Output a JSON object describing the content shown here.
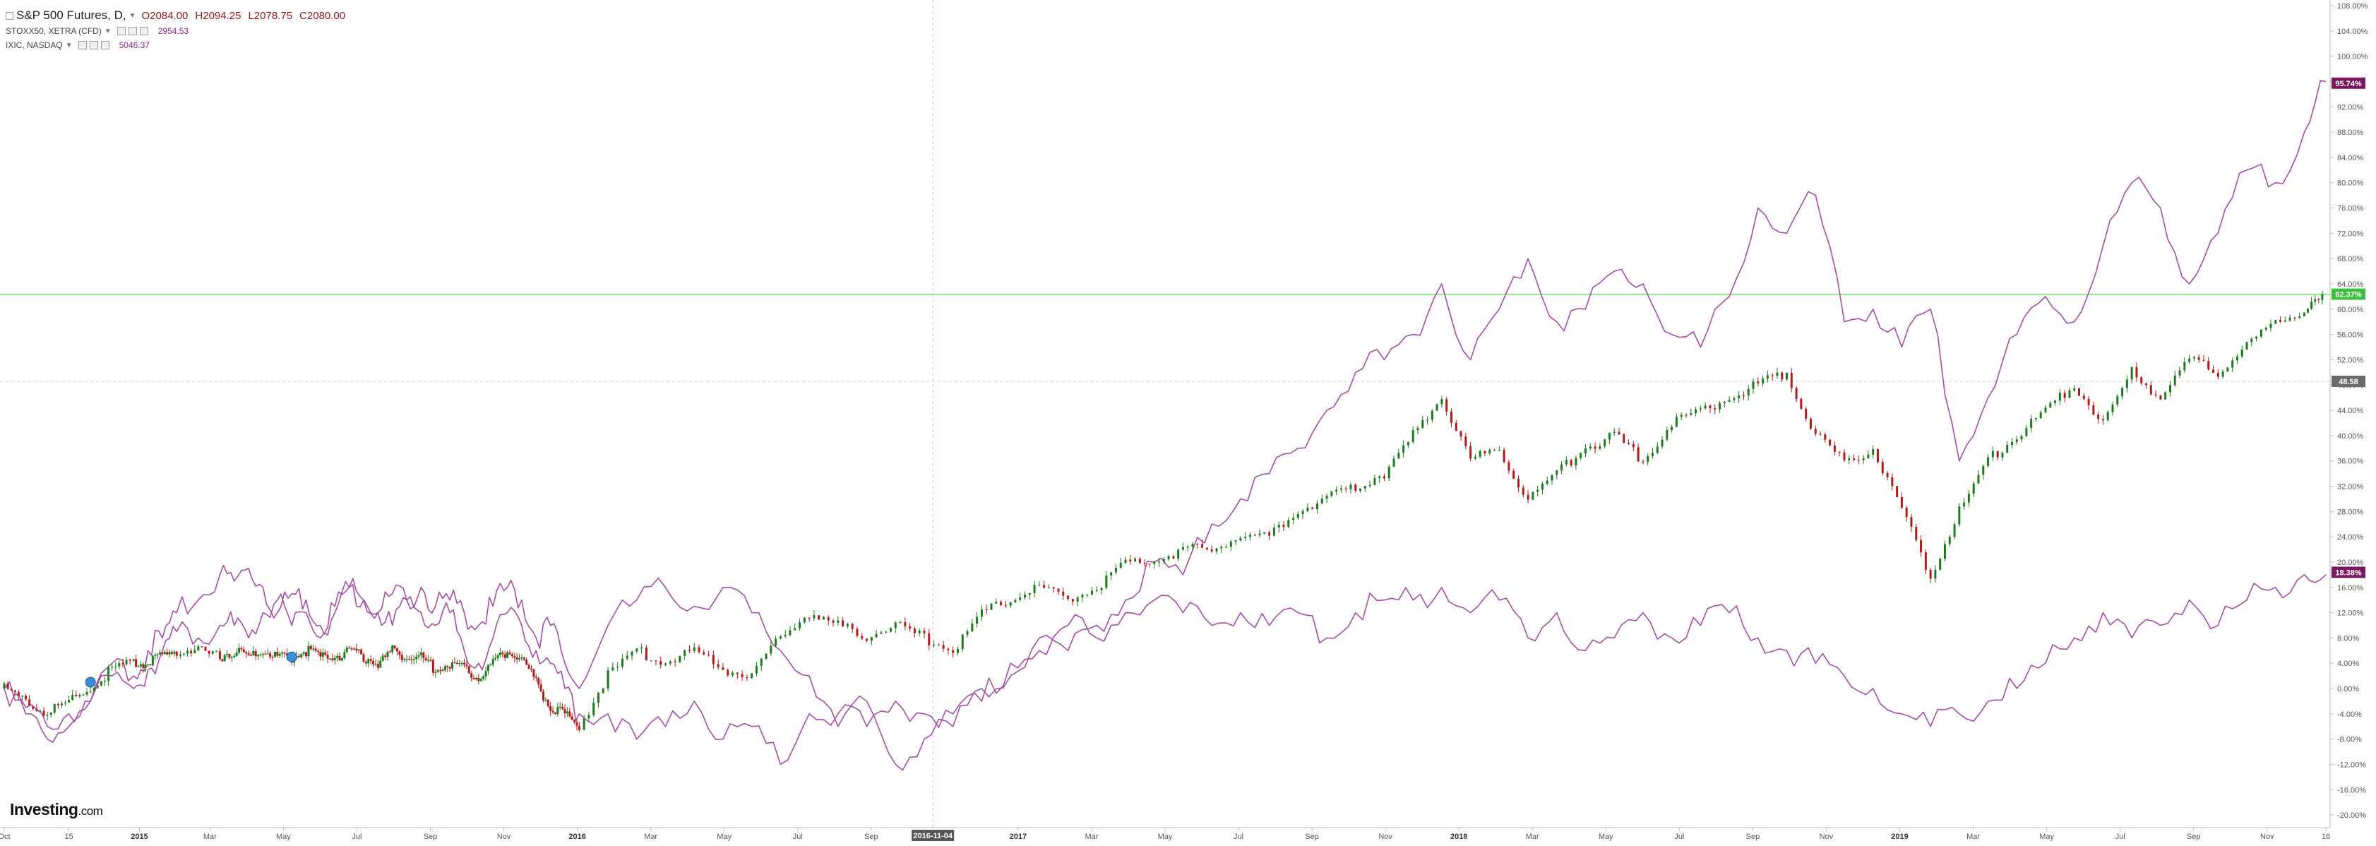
{
  "header": {
    "symbol": "S&P 500 Futures, D,",
    "ohlc": {
      "o": "O2084.00",
      "h": "H2094.25",
      "l": "L2078.75",
      "c": "C2080.00"
    },
    "compare": [
      {
        "name": "STOXX50, XETRA (CFD)",
        "value": "2954.53"
      },
      {
        "name": "IXIC, NASDAQ",
        "value": "5046.37"
      }
    ]
  },
  "logo": {
    "text": "Investing",
    "suffix": ".com"
  },
  "colors": {
    "compare_series": "#a050a0",
    "candle_up": "#1e7a1e",
    "candle_down": "#b01c1c",
    "current_line": "#66e066",
    "badge_purple": "#7a1a5e",
    "badge_green": "#3dbf3d",
    "badge_gray": "#6b6b6b"
  },
  "chart_data": {
    "type": "line",
    "yaxis_unit": "%",
    "ylim": [
      -22,
      108
    ],
    "y_ticks": [
      "108.00%",
      "104.00%",
      "100.00%",
      "96.00%",
      "92.00%",
      "88.00%",
      "84.00%",
      "80.00%",
      "76.00%",
      "72.00%",
      "68.00%",
      "64.00%",
      "60.00%",
      "56.00%",
      "52.00%",
      "48.00%",
      "44.00%",
      "40.00%",
      "36.00%",
      "32.00%",
      "28.00%",
      "24.00%",
      "20.00%",
      "16.00%",
      "12.00%",
      "8.00%",
      "4.00%",
      "0.00%",
      "-4.00%",
      "-8.00%",
      "-12.00%",
      "-16.00%",
      "-20.00%"
    ],
    "x_ticks": [
      "Oct",
      "15",
      "2015",
      "Mar",
      "May",
      "Jul",
      "Sep",
      "Nov",
      "2016",
      "Mar",
      "May",
      "Jul",
      "Sep",
      "2016-11-04",
      "2017",
      "Mar",
      "May",
      "Jul",
      "Sep",
      "Nov",
      "2018",
      "Mar",
      "May",
      "Jul",
      "Sep",
      "Nov",
      "2019",
      "Mar",
      "May",
      "Jul",
      "Sep",
      "Nov",
      "16"
    ],
    "crosshair": {
      "x_label": "2016-11-04",
      "y_label": "48.58"
    },
    "current_value_labels": [
      "95.74%",
      "62.37%",
      "18.38%"
    ],
    "series": [
      {
        "name": "IXIC, NASDAQ",
        "style": "line",
        "x": [
          0,
          3,
          6,
          9,
          12,
          15,
          18,
          20,
          22,
          24,
          27,
          30,
          32,
          34,
          36,
          38,
          40,
          42,
          44,
          46,
          48,
          50,
          52,
          54,
          56,
          58,
          60,
          62,
          64,
          66,
          68,
          70,
          72,
          74,
          76,
          78,
          80,
          84,
          88,
          92,
          96,
          100,
          104,
          108,
          112,
          116,
          120,
          124,
          128,
          132,
          136,
          140,
          144,
          148,
          152,
          156,
          160,
          164,
          168,
          172,
          176,
          180,
          184,
          188,
          192,
          196,
          200,
          204,
          208,
          212,
          216,
          220,
          224,
          228,
          232,
          236,
          240,
          244,
          248,
          252,
          256,
          260,
          264,
          268,
          272,
          276,
          280,
          284,
          288,
          292,
          296,
          300,
          304,
          308,
          312,
          316,
          320,
          323
        ],
        "y": [
          0,
          -4,
          -8,
          -6,
          -2,
          4,
          2,
          6,
          8,
          12,
          14,
          18,
          17,
          19,
          16,
          12,
          15,
          14,
          10,
          13,
          16,
          14,
          12,
          15,
          14,
          16,
          13,
          14,
          12,
          10,
          13,
          16,
          14,
          8,
          10,
          4,
          0,
          10,
          14,
          16,
          13,
          16,
          12,
          6,
          2,
          -6,
          -2,
          -12,
          -8,
          -6,
          0,
          2,
          8,
          6,
          10,
          14,
          20,
          18,
          26,
          30,
          34,
          38,
          44,
          50,
          52,
          56,
          64,
          52,
          60,
          68,
          58,
          60,
          66,
          64,
          56,
          54,
          62,
          76,
          72,
          78,
          58,
          60,
          54,
          60,
          36,
          46,
          56,
          62,
          58,
          70,
          80,
          76,
          64,
          72,
          82,
          80,
          88,
          96
        ]
      },
      {
        "name": "S&P 500 Futures",
        "style": "candles",
        "x": [
          0,
          3,
          6,
          9,
          12,
          15,
          18,
          20,
          22,
          24,
          27,
          30,
          32,
          34,
          36,
          38,
          40,
          42,
          44,
          46,
          48,
          50,
          52,
          54,
          56,
          58,
          60,
          62,
          64,
          66,
          68,
          70,
          72,
          74,
          76,
          78,
          80,
          84,
          88,
          92,
          96,
          100,
          104,
          108,
          112,
          116,
          120,
          124,
          128,
          132,
          136,
          140,
          144,
          148,
          152,
          156,
          160,
          164,
          168,
          172,
          176,
          180,
          184,
          188,
          192,
          196,
          200,
          204,
          208,
          212,
          216,
          220,
          224,
          228,
          232,
          236,
          240,
          244,
          248,
          252,
          256,
          260,
          264,
          268,
          272,
          276,
          280,
          284,
          288,
          292,
          296,
          300,
          304,
          308,
          312,
          316,
          320,
          323
        ],
        "y": [
          0,
          -2,
          -4,
          -2,
          0,
          3,
          4,
          4,
          5,
          6,
          6,
          5,
          6,
          5,
          6,
          5,
          5,
          6,
          5,
          5,
          6,
          5,
          4,
          6,
          5,
          5,
          3,
          4,
          3,
          2,
          4,
          6,
          5,
          1,
          -3,
          -4,
          -6,
          2,
          6,
          4,
          6,
          3,
          2,
          8,
          12,
          10,
          8,
          10,
          8,
          6,
          12,
          14,
          16,
          14,
          16,
          20,
          20,
          22,
          22,
          24,
          24,
          28,
          30,
          32,
          34,
          40,
          46,
          36,
          38,
          30,
          34,
          38,
          40,
          36,
          42,
          44,
          46,
          48,
          50,
          40,
          36,
          38,
          28,
          18,
          28,
          36,
          40,
          44,
          48,
          42,
          50,
          46,
          52,
          50,
          54,
          58,
          60,
          62
        ]
      },
      {
        "name": "STOXX50, XETRA (CFD)",
        "style": "line",
        "x": [
          0,
          3,
          6,
          9,
          12,
          15,
          18,
          20,
          22,
          24,
          27,
          30,
          32,
          34,
          36,
          38,
          40,
          42,
          44,
          46,
          48,
          50,
          52,
          54,
          56,
          58,
          60,
          62,
          64,
          66,
          68,
          70,
          72,
          74,
          76,
          78,
          80,
          84,
          88,
          92,
          96,
          100,
          104,
          108,
          112,
          116,
          120,
          124,
          128,
          132,
          136,
          140,
          144,
          148,
          152,
          156,
          160,
          164,
          168,
          172,
          176,
          180,
          184,
          188,
          192,
          196,
          200,
          204,
          208,
          212,
          216,
          220,
          224,
          228,
          232,
          236,
          240,
          244,
          248,
          252,
          256,
          260,
          264,
          268,
          272,
          276,
          280,
          284,
          288,
          292,
          296,
          300,
          304,
          308,
          312,
          316,
          320,
          323
        ],
        "y": [
          0,
          -3,
          -6,
          -4,
          -2,
          2,
          0,
          3,
          6,
          9,
          8,
          10,
          10,
          8,
          12,
          14,
          10,
          12,
          8,
          12,
          16,
          14,
          12,
          10,
          14,
          12,
          10,
          12,
          6,
          4,
          8,
          12,
          10,
          6,
          4,
          0,
          -4,
          -4,
          -8,
          -6,
          -2,
          -8,
          -6,
          -12,
          -4,
          -4,
          -6,
          -2,
          -4,
          -4,
          -2,
          4,
          6,
          10,
          8,
          12,
          14,
          12,
          10,
          12,
          10,
          12,
          8,
          12,
          14,
          14,
          16,
          12,
          14,
          8,
          12,
          6,
          8,
          12,
          8,
          10,
          12,
          8,
          6,
          4,
          2,
          0,
          -4,
          -6,
          -4,
          -2,
          0,
          4,
          8,
          12,
          8,
          10,
          14,
          10,
          14,
          16,
          18,
          18
        ]
      }
    ]
  }
}
